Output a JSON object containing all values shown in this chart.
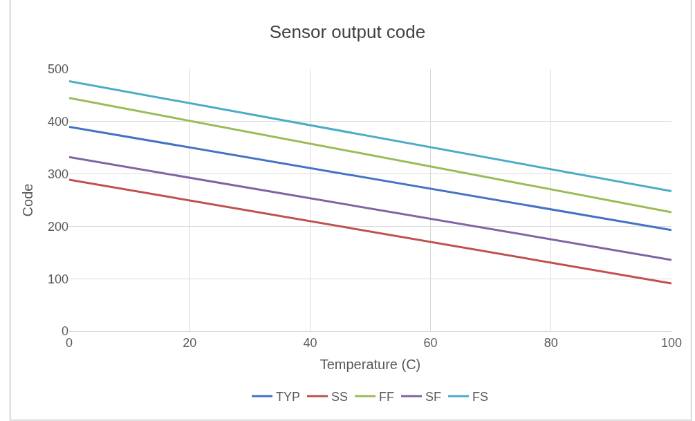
{
  "chart_data": {
    "type": "line",
    "title": "Sensor output code",
    "xlabel": "Temperature (C)",
    "ylabel": "Code",
    "x": [
      0,
      100
    ],
    "series": [
      {
        "name": "TYP",
        "color": "#4472c4",
        "values": [
          390,
          193
        ]
      },
      {
        "name": "SS",
        "color": "#c0504d",
        "values": [
          289,
          91
        ]
      },
      {
        "name": "FF",
        "color": "#9bbb59",
        "values": [
          445,
          227
        ]
      },
      {
        "name": "SF",
        "color": "#8064a2",
        "values": [
          332,
          136
        ]
      },
      {
        "name": "FS",
        "color": "#4bacc6",
        "values": [
          477,
          267
        ]
      }
    ],
    "xlim": [
      0,
      100
    ],
    "xticks": [
      0,
      20,
      40,
      60,
      80,
      100
    ],
    "ylim": [
      0,
      500
    ],
    "yticks": [
      0,
      100,
      200,
      300,
      400,
      500
    ],
    "grid": true,
    "legend": "bottom",
    "marker": "none",
    "line_style": "solid"
  }
}
